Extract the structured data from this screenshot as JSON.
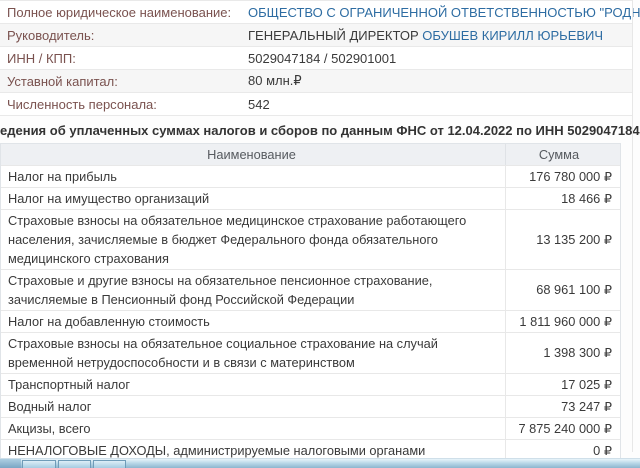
{
  "info": {
    "rows": [
      {
        "label": "Полное юридическое наименование:",
        "value": "ОБЩЕСТВО С ОГРАНИЧЕННОЙ ОТВЕТСТВЕННОСТЬЮ \"РОДНИК И К\""
      },
      {
        "label": "Руководитель:",
        "value": "ГЕНЕРАЛЬНЫЙ ДИРЕКТОР",
        "link_value": "ОБУШЕВ КИРИЛЛ ЮРЬЕВИЧ"
      },
      {
        "label": "ИНН / КПП:",
        "value": "5029047184 / 502901001"
      },
      {
        "label": "Уставной капитал:",
        "value": "80 млн.₽"
      },
      {
        "label": "Численность персонала:",
        "value": "542"
      }
    ]
  },
  "taxes": {
    "section_title": "едения об уплаченных суммах налогов и сборов по данным ФНС от 12.04.2022 по ИНН 5029047184:",
    "table": {
      "header_name": "Наименование",
      "header_sum": "Сумма",
      "rows": [
        {
          "name": "Налог на прибыль",
          "sum": "176 780 000 ₽"
        },
        {
          "name": "Налог на имущество организаций",
          "sum": "18 466 ₽"
        },
        {
          "name": "Страховые взносы на обязательное медицинское страхование работающего населения, зачисляемые в бюджет Федерального фонда обязательного медицинского страхования",
          "sum": "13 135 200 ₽"
        },
        {
          "name": "Страховые и другие взносы на обязательное пенсионное страхование, зачисляемые в Пенсионный фонд Российской Федерации",
          "sum": "68 961 100 ₽"
        },
        {
          "name": "Налог на добавленную стоимость",
          "sum": "1 811 960 000 ₽"
        },
        {
          "name": "Страховые взносы на обязательное социальное страхование на случай временной нетрудоспособности и в связи с материнством",
          "sum": "1 398 300 ₽"
        },
        {
          "name": "Транспортный налог",
          "sum": "17 025 ₽"
        },
        {
          "name": "Водный налог",
          "sum": "73 247 ₽"
        },
        {
          "name": "Акцизы, всего",
          "sum": "7 875 240 000 ₽"
        },
        {
          "name": "НЕНАЛОГОВЫЕ ДОХОДЫ, администрируемые налоговыми органами",
          "sum": "0 ₽"
        }
      ]
    }
  },
  "colors": {
    "link_blue": "#2d6ca2",
    "label_maroon": "#7a524f",
    "table_header_bg": "#eef0f3",
    "taskbar_blue": "#b9d8e8"
  }
}
